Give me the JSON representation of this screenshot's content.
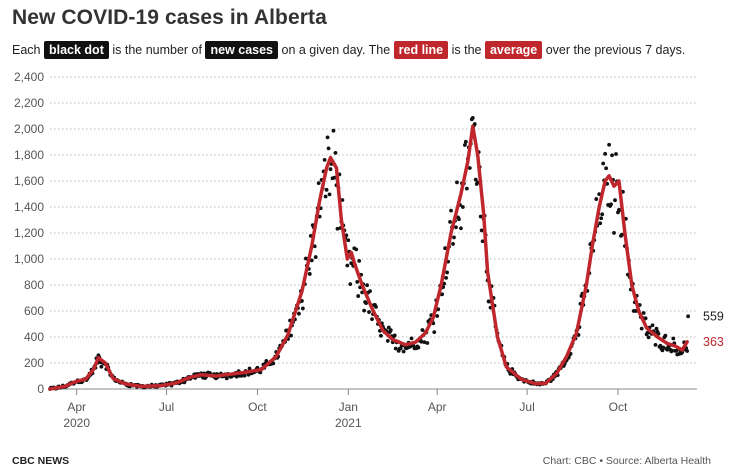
{
  "header": {
    "title": "New COVID-19 cases in Alberta",
    "sub_each": "Each",
    "sub_black_dot": "black dot",
    "sub_is_number": "is the number of",
    "sub_new_cases": "new cases",
    "sub_on_day": "on a given day. The",
    "sub_red_line": "red line",
    "sub_is_the": "is the",
    "sub_average": "average",
    "sub_over": "over the previous 7 days."
  },
  "footer": {
    "source_left": "CBC NEWS",
    "source_right": "Chart: CBC • Source: Alberta Health"
  },
  "colors": {
    "dots": "#111111",
    "average_line": "#c0272d",
    "grid": "#bbbbbb",
    "axis_text": "#555555"
  },
  "chart_data": {
    "type": "scatter",
    "ylim": [
      0,
      2400
    ],
    "y_ticks": [
      0,
      200,
      400,
      600,
      800,
      "1,000",
      "1,200",
      "1,400",
      "1,600",
      "1,800",
      "2,000",
      "2,200",
      "2,400"
    ],
    "y_tick_values": [
      0,
      200,
      400,
      600,
      800,
      1000,
      1200,
      1400,
      1600,
      1800,
      2000,
      2200,
      2400
    ],
    "xlim": [
      "2020-03-05",
      "2021-12-20"
    ],
    "x_ticks": [
      {
        "date": "2020-04-01",
        "label": "Apr",
        "sublabel": "2020"
      },
      {
        "date": "2020-07-01",
        "label": "Jul",
        "sublabel": ""
      },
      {
        "date": "2020-10-01",
        "label": "Oct",
        "sublabel": ""
      },
      {
        "date": "2021-01-01",
        "label": "Jan",
        "sublabel": "2021"
      },
      {
        "date": "2021-04-01",
        "label": "Apr",
        "sublabel": ""
      },
      {
        "date": "2021-07-01",
        "label": "Jul",
        "sublabel": ""
      },
      {
        "date": "2021-10-01",
        "label": "Oct",
        "sublabel": ""
      }
    ],
    "grid": "horizontal dotted",
    "series": [
      {
        "name": "new cases",
        "kind": "dots",
        "color": "#111111",
        "anchors": [
          [
            "2020-03-05",
            0
          ],
          [
            "2020-03-20",
            20
          ],
          [
            "2020-04-01",
            60
          ],
          [
            "2020-04-10",
            70
          ],
          [
            "2020-04-18",
            150
          ],
          [
            "2020-04-23",
            240
          ],
          [
            "2020-04-30",
            200
          ],
          [
            "2020-05-08",
            80
          ],
          [
            "2020-05-20",
            40
          ],
          [
            "2020-06-05",
            20
          ],
          [
            "2020-06-25",
            25
          ],
          [
            "2020-07-10",
            45
          ],
          [
            "2020-07-25",
            90
          ],
          [
            "2020-08-05",
            110
          ],
          [
            "2020-08-20",
            100
          ],
          [
            "2020-09-05",
            115
          ],
          [
            "2020-09-20",
            130
          ],
          [
            "2020-10-05",
            150
          ],
          [
            "2020-10-20",
            250
          ],
          [
            "2020-11-01",
            420
          ],
          [
            "2020-11-15",
            750
          ],
          [
            "2020-11-25",
            1100
          ],
          [
            "2020-12-03",
            1450
          ],
          [
            "2020-12-10",
            1700
          ],
          [
            "2020-12-14",
            1780
          ],
          [
            "2020-12-20",
            1700
          ],
          [
            "2020-12-25",
            1300
          ],
          [
            "2020-12-31",
            1000
          ],
          [
            "2021-01-08",
            950
          ],
          [
            "2021-01-15",
            800
          ],
          [
            "2021-01-25",
            620
          ],
          [
            "2021-02-05",
            450
          ],
          [
            "2021-02-15",
            380
          ],
          [
            "2021-02-28",
            340
          ],
          [
            "2021-03-10",
            360
          ],
          [
            "2021-03-20",
            430
          ],
          [
            "2021-03-28",
            550
          ],
          [
            "2021-04-05",
            800
          ],
          [
            "2021-04-15",
            1200
          ],
          [
            "2021-04-25",
            1500
          ],
          [
            "2021-05-02",
            1750
          ],
          [
            "2021-05-07",
            2020
          ],
          [
            "2021-05-12",
            1800
          ],
          [
            "2021-05-18",
            1350
          ],
          [
            "2021-05-22",
            900
          ],
          [
            "2021-06-01",
            400
          ],
          [
            "2021-06-10",
            170
          ],
          [
            "2021-06-25",
            75
          ],
          [
            "2021-07-10",
            40
          ],
          [
            "2021-07-20",
            45
          ],
          [
            "2021-07-31",
            120
          ],
          [
            "2021-08-10",
            250
          ],
          [
            "2021-08-20",
            430
          ],
          [
            "2021-08-30",
            800
          ],
          [
            "2021-09-05",
            1100
          ],
          [
            "2021-09-12",
            1400
          ],
          [
            "2021-09-18",
            1600
          ],
          [
            "2021-09-22",
            1640
          ],
          [
            "2021-09-27",
            1560
          ],
          [
            "2021-10-02",
            1600
          ],
          [
            "2021-10-08",
            1200
          ],
          [
            "2021-10-15",
            800
          ],
          [
            "2021-10-22",
            600
          ],
          [
            "2021-10-30",
            470
          ],
          [
            "2021-11-10",
            400
          ],
          [
            "2021-11-20",
            350
          ],
          [
            "2021-11-28",
            330
          ],
          [
            "2021-12-05",
            300
          ],
          [
            "2021-12-10",
            340
          ]
        ],
        "last_value": 559
      },
      {
        "name": "average",
        "kind": "line",
        "color": "#c0272d",
        "values": [
          [
            "2020-03-05",
            0
          ],
          [
            "2020-03-20",
            20
          ],
          [
            "2020-04-01",
            60
          ],
          [
            "2020-04-10",
            75
          ],
          [
            "2020-04-18",
            150
          ],
          [
            "2020-04-23",
            240
          ],
          [
            "2020-04-30",
            200
          ],
          [
            "2020-05-08",
            80
          ],
          [
            "2020-05-20",
            40
          ],
          [
            "2020-06-05",
            20
          ],
          [
            "2020-06-25",
            25
          ],
          [
            "2020-07-10",
            45
          ],
          [
            "2020-07-25",
            90
          ],
          [
            "2020-08-05",
            110
          ],
          [
            "2020-08-20",
            100
          ],
          [
            "2020-09-05",
            115
          ],
          [
            "2020-09-20",
            130
          ],
          [
            "2020-10-05",
            150
          ],
          [
            "2020-10-20",
            250
          ],
          [
            "2020-11-01",
            420
          ],
          [
            "2020-11-15",
            750
          ],
          [
            "2020-11-25",
            1100
          ],
          [
            "2020-12-03",
            1450
          ],
          [
            "2020-12-10",
            1700
          ],
          [
            "2020-12-14",
            1780
          ],
          [
            "2020-12-20",
            1700
          ],
          [
            "2020-12-25",
            1300
          ],
          [
            "2020-12-31",
            1000
          ],
          [
            "2021-01-04",
            1050
          ],
          [
            "2021-01-08",
            950
          ],
          [
            "2021-01-15",
            800
          ],
          [
            "2021-01-25",
            620
          ],
          [
            "2021-02-05",
            450
          ],
          [
            "2021-02-15",
            380
          ],
          [
            "2021-02-28",
            340
          ],
          [
            "2021-03-10",
            360
          ],
          [
            "2021-03-20",
            430
          ],
          [
            "2021-03-28",
            550
          ],
          [
            "2021-04-05",
            800
          ],
          [
            "2021-04-15",
            1200
          ],
          [
            "2021-04-25",
            1500
          ],
          [
            "2021-05-02",
            1750
          ],
          [
            "2021-05-07",
            2020
          ],
          [
            "2021-05-12",
            1800
          ],
          [
            "2021-05-18",
            1350
          ],
          [
            "2021-05-22",
            900
          ],
          [
            "2021-06-01",
            400
          ],
          [
            "2021-06-10",
            170
          ],
          [
            "2021-06-25",
            75
          ],
          [
            "2021-07-10",
            40
          ],
          [
            "2021-07-20",
            45
          ],
          [
            "2021-07-31",
            120
          ],
          [
            "2021-08-10",
            250
          ],
          [
            "2021-08-20",
            430
          ],
          [
            "2021-08-30",
            800
          ],
          [
            "2021-09-05",
            1100
          ],
          [
            "2021-09-12",
            1400
          ],
          [
            "2021-09-18",
            1600
          ],
          [
            "2021-09-22",
            1640
          ],
          [
            "2021-09-27",
            1560
          ],
          [
            "2021-10-02",
            1600
          ],
          [
            "2021-10-08",
            1200
          ],
          [
            "2021-10-15",
            800
          ],
          [
            "2021-10-22",
            600
          ],
          [
            "2021-10-30",
            470
          ],
          [
            "2021-11-10",
            400
          ],
          [
            "2021-11-20",
            350
          ],
          [
            "2021-11-28",
            330
          ],
          [
            "2021-12-05",
            300
          ],
          [
            "2021-12-10",
            363
          ]
        ],
        "last_value": 363
      }
    ],
    "end_labels": [
      {
        "series": "new cases",
        "text": "559"
      },
      {
        "series": "average",
        "text": "363"
      }
    ]
  }
}
